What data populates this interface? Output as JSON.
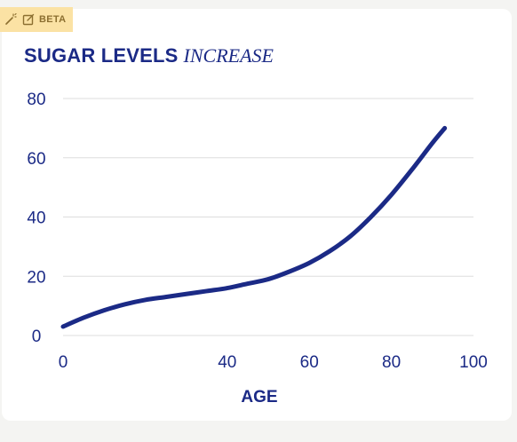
{
  "badge": {
    "label": "BETA",
    "icons": [
      "magic-wand-icon",
      "external-link-icon"
    ],
    "color": "#fbe2a4"
  },
  "title": {
    "main": "SUGAR LEVELS",
    "emphasis": "INCREASE"
  },
  "colors": {
    "line": "#1b2a86",
    "text": "#1b2a86",
    "grid": "#dddddd"
  },
  "chart_data": {
    "type": "line",
    "title": "SUGAR LEVELS INCREASE",
    "xlabel": "AGE",
    "ylabel": "",
    "xlim": [
      0,
      100
    ],
    "ylim": [
      0,
      80
    ],
    "xticks": [
      0,
      40,
      60,
      80,
      100
    ],
    "yticks": [
      0,
      20,
      40,
      60,
      80
    ],
    "grid": "horizontal",
    "series": [
      {
        "x": [
          0,
          5,
          10,
          15,
          20,
          25,
          30,
          35,
          40,
          45,
          50,
          55,
          60,
          65,
          70,
          75,
          80,
          85,
          90,
          93
        ],
        "y": [
          3,
          6,
          8.5,
          10.5,
          12,
          13,
          14,
          15,
          16,
          17.5,
          19,
          21.5,
          24.5,
          28.5,
          33.5,
          40,
          47.5,
          56,
          65,
          70
        ]
      }
    ]
  }
}
